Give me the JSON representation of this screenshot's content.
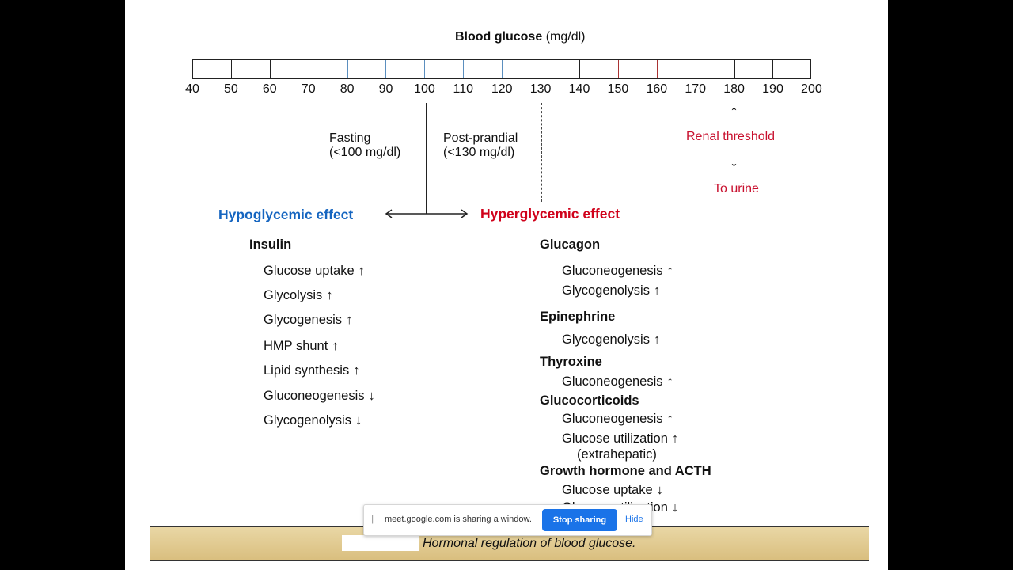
{
  "diagram": {
    "scale_title_bold": "Blood glucose",
    "scale_title_unit": "(mg/dl)",
    "ticks": [
      "40",
      "50",
      "60",
      "70",
      "80",
      "90",
      "100",
      "110",
      "120",
      "130",
      "140",
      "150",
      "160",
      "170",
      "180",
      "190",
      "200"
    ],
    "fasting": {
      "line1": "Fasting",
      "line2": "(<100 mg/dl)"
    },
    "postprandial": {
      "line1": "Post-prandial",
      "line2": "(<130 mg/dl)"
    },
    "renal": {
      "label": "Renal threshold",
      "urine": "To urine",
      "up_arrow": "↑",
      "down_arrow": "↓"
    },
    "hypo_title": "Hypoglycemic effect",
    "hyper_title": "Hyperglycemic effect",
    "insulin": {
      "heading": "Insulin",
      "items": [
        {
          "text": "Glucose uptake",
          "arrow": "↑"
        },
        {
          "text": "Glycolysis",
          "arrow": "↑"
        },
        {
          "text": "Glycogenesis",
          "arrow": "↑"
        },
        {
          "text": "HMP shunt",
          "arrow": "↑"
        },
        {
          "text": "Lipid synthesis",
          "arrow": "↑"
        },
        {
          "text": "Gluconeogenesis",
          "arrow": "↓"
        },
        {
          "text": "Glycogenolysis",
          "arrow": "↓"
        }
      ]
    },
    "glucagon": {
      "heading": "Glucagon",
      "items": [
        {
          "text": "Gluconeogenesis",
          "arrow": "↑"
        },
        {
          "text": "Glycogenolysis",
          "arrow": "↑"
        }
      ]
    },
    "epinephrine": {
      "heading": "Epinephrine",
      "items": [
        {
          "text": "Glycogenolysis",
          "arrow": "↑"
        }
      ]
    },
    "thyroxine": {
      "heading": "Thyroxine",
      "items": [
        {
          "text": "Gluconeogenesis",
          "arrow": "↑"
        }
      ]
    },
    "glucocorticoids": {
      "heading": "Glucocorticoids",
      "items": [
        {
          "text": "Gluconeogenesis",
          "arrow": "↑"
        },
        {
          "text": "Glucose utilization",
          "arrow": "↑"
        }
      ],
      "note": "(extrahepatic)"
    },
    "gh_acth": {
      "heading": "Growth hormone and ACTH",
      "items": [
        {
          "text": "Glucose uptake",
          "arrow": "↓"
        },
        {
          "text": "Glucose utilization",
          "arrow": "↓"
        }
      ]
    },
    "caption": "Hormonal regulation of blood glucose."
  },
  "share_bar": {
    "grip": "||",
    "message": "meet.google.com is sharing a window.",
    "stop_label": "Stop sharing",
    "hide_label": "Hide"
  },
  "colors": {
    "hypo": "#1565c0",
    "hyper": "#d0021b",
    "button": "#1a73e8"
  }
}
